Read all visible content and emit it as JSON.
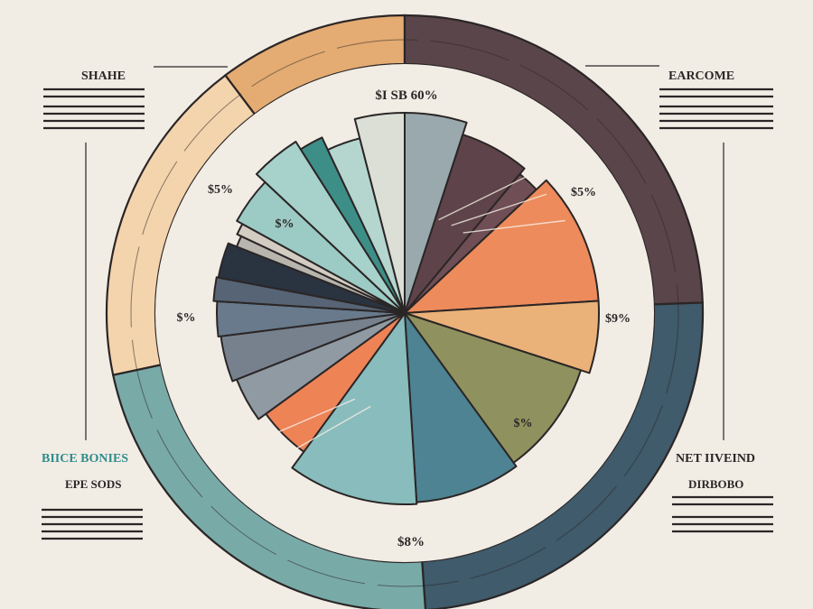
{
  "chart_data": {
    "type": "pie",
    "center_label": "$I SB 60%",
    "slices": [
      {
        "value": 5,
        "color": "#9aa9ad"
      },
      {
        "value": 6,
        "color": "#5e444a"
      },
      {
        "value": 2,
        "color": "#6f4e55"
      },
      {
        "value": 11,
        "color": "#ed8b5c"
      },
      {
        "value": 6,
        "color": "#eab178"
      },
      {
        "value": 10,
        "color": "#8f925e"
      },
      {
        "value": 9,
        "color": "#4d8393"
      },
      {
        "value": 11,
        "color": "#89bcbc"
      },
      {
        "value": 5,
        "color": "#ee8356"
      },
      {
        "value": 4,
        "color": "#8f9aa3"
      },
      {
        "value": 4,
        "color": "#77818e"
      },
      {
        "value": 3,
        "color": "#687a8c"
      },
      {
        "value": 2,
        "color": "#566475"
      },
      {
        "value": 3,
        "color": "#2a3340"
      },
      {
        "value": 1,
        "color": "#b7b5ae"
      },
      {
        "value": 1,
        "color": "#d3ccc3"
      },
      {
        "value": 4,
        "color": "#9ccac4"
      },
      {
        "value": 4,
        "color": "#a7d1cb"
      },
      {
        "value": 2,
        "color": "#3e8e88"
      },
      {
        "value": 3,
        "color": "#b4d6cf"
      },
      {
        "value": 4,
        "color": "#dcdfd6"
      }
    ],
    "labels": {
      "slice_top": "$I SB 60%",
      "upper_left": "$5%",
      "inner_left": "$%",
      "left": "$%",
      "upper_right": "$5%",
      "right": "$9%",
      "lower_right": "$%",
      "bottom": "$8%"
    },
    "ring": [
      {
        "color": "#e4ab72"
      },
      {
        "color": "#5a454a"
      },
      {
        "color": "#3f5b6c"
      },
      {
        "color": "#78aaa8"
      },
      {
        "color": "#f4d4ad"
      }
    ]
  },
  "side_panels": {
    "top_left_title": "SHAHE",
    "top_right_title": "EARCOME",
    "bottom_left_title": "BIICE BONIES",
    "bottom_left_subtitle": "EPE SODS",
    "bottom_right_title": "NET IIVEIND",
    "bottom_right_subtitle": "DIRBOBO"
  },
  "colors": {
    "background": "#f1ece4",
    "ink": "#2b2626",
    "accent_teal": "#2f8c8c",
    "accent_red": "#a63a2e"
  }
}
